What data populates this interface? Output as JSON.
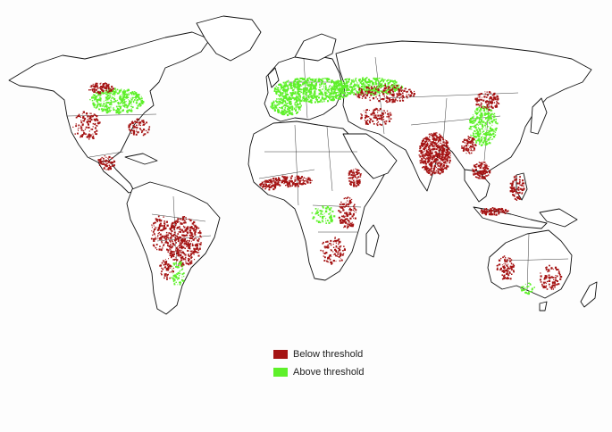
{
  "map": {
    "colors": {
      "below": "#a51414",
      "above": "#5ef02a",
      "land_fill": "#ffffff",
      "coastline": "#111111"
    }
  },
  "legend": {
    "items": [
      {
        "label": "Below threshold",
        "color": "#a51414"
      },
      {
        "label": "Above threshold",
        "color": "#5ef02a"
      }
    ]
  }
}
